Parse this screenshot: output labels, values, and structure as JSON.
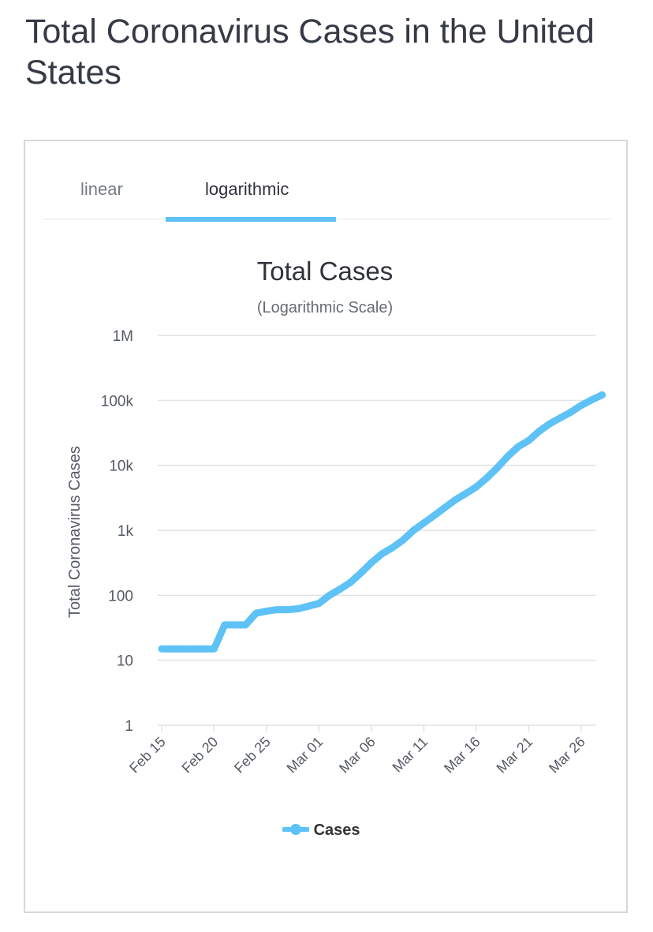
{
  "page": {
    "title": "Total Coronavirus Cases in the United States"
  },
  "tabs": [
    {
      "label": "linear",
      "active": false
    },
    {
      "label": "logarithmic",
      "active": true
    }
  ],
  "colors": {
    "series": "#5ec2f7",
    "grid": "#dfe2e6",
    "text": "#555a63"
  },
  "chart_data": {
    "type": "line",
    "title": "Total Cases",
    "subtitle": "(Logarithmic Scale)",
    "ylabel": "Total Coronavirus Cases",
    "xlabel": "",
    "yscale": "log",
    "ylim": [
      1,
      1000000
    ],
    "yticks": [
      {
        "value": 1,
        "label": "1"
      },
      {
        "value": 10,
        "label": "10"
      },
      {
        "value": 100,
        "label": "100"
      },
      {
        "value": 1000,
        "label": "1k"
      },
      {
        "value": 10000,
        "label": "10k"
      },
      {
        "value": 100000,
        "label": "100k"
      },
      {
        "value": 1000000,
        "label": "1M"
      }
    ],
    "xticks": [
      "Feb 15",
      "Feb 20",
      "Feb 25",
      "Mar 01",
      "Mar 06",
      "Mar 11",
      "Mar 16",
      "Mar 21",
      "Mar 26"
    ],
    "legend": {
      "position": "bottom-center"
    },
    "grid": true,
    "series": [
      {
        "name": "Cases",
        "x": [
          "Feb 15",
          "Feb 16",
          "Feb 17",
          "Feb 18",
          "Feb 19",
          "Feb 20",
          "Feb 21",
          "Feb 22",
          "Feb 23",
          "Feb 24",
          "Feb 25",
          "Feb 26",
          "Feb 27",
          "Feb 28",
          "Feb 29",
          "Mar 01",
          "Mar 02",
          "Mar 03",
          "Mar 04",
          "Mar 05",
          "Mar 06",
          "Mar 07",
          "Mar 08",
          "Mar 09",
          "Mar 10",
          "Mar 11",
          "Mar 12",
          "Mar 13",
          "Mar 14",
          "Mar 15",
          "Mar 16",
          "Mar 17",
          "Mar 18",
          "Mar 19",
          "Mar 20",
          "Mar 21",
          "Mar 22",
          "Mar 23",
          "Mar 24",
          "Mar 25",
          "Mar 26",
          "Mar 27",
          "Mar 28"
        ],
        "values": [
          15,
          15,
          15,
          15,
          15,
          15,
          35,
          35,
          35,
          53,
          57,
          60,
          60,
          62,
          68,
          75,
          100,
          124,
          158,
          221,
          319,
          435,
          541,
          704,
          994,
          1301,
          1697,
          2247,
          2943,
          3680,
          4663,
          6411,
          9197,
          13779,
          19383,
          24207,
          33566,
          43734,
          53740,
          65778,
          83836,
          101657,
          121478
        ]
      }
    ]
  }
}
